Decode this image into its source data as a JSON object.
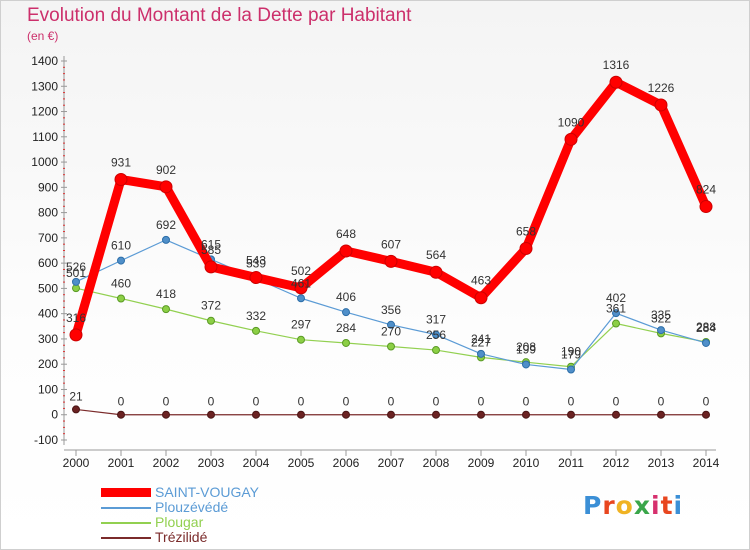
{
  "header": {
    "title": "Evolution du Montant de la Dette par Habitant",
    "subtitle": "(en €)"
  },
  "logo": {
    "text": "Proxiti",
    "colors": [
      "#3b8fd6",
      "#e8461f",
      "#f0b323",
      "#3aa64a",
      "#d6306e",
      "#e8461f",
      "#3b8fd6"
    ]
  },
  "legend": {
    "items": [
      {
        "label": "SAINT-VOUGAY",
        "color": "#ff0000"
      },
      {
        "label": "Plouzévédé",
        "color": "#5b9bd5"
      },
      {
        "label": "Plougar",
        "color": "#92d050"
      },
      {
        "label": "Trézilidé",
        "color": "#7b2b2b"
      }
    ]
  },
  "chart_data": {
    "type": "line",
    "x": [
      "2000",
      "2001",
      "2002",
      "2003",
      "2004",
      "2005",
      "2006",
      "2007",
      "2008",
      "2009",
      "2010",
      "2011",
      "2012",
      "2013",
      "2014"
    ],
    "ylim": [
      -100,
      1400
    ],
    "yticks": [
      -100,
      0,
      100,
      200,
      300,
      400,
      500,
      600,
      700,
      800,
      900,
      1000,
      1100,
      1200,
      1300,
      1400
    ],
    "grid": false,
    "legend_position": "bottom-left",
    "series": [
      {
        "name": "SAINT-VOUGAY",
        "color": "#ff0000",
        "values": [
          316,
          931,
          902,
          585,
          543,
          502,
          648,
          607,
          564,
          463,
          658,
          1090,
          1316,
          1226,
          824
        ]
      },
      {
        "name": "Plouzévédé",
        "color": "#5b9bd5",
        "values": [
          526,
          610,
          692,
          615,
          539,
          461,
          406,
          356,
          317,
          241,
          199,
          179,
          402,
          335,
          284
        ]
      },
      {
        "name": "Plougar",
        "color": "#92d050",
        "values": [
          501,
          460,
          418,
          372,
          332,
          297,
          284,
          270,
          256,
          227,
          208,
          190,
          361,
          322,
          288
        ]
      },
      {
        "name": "Trézilidé",
        "color": "#7b2b2b",
        "values": [
          21,
          0,
          0,
          0,
          0,
          0,
          0,
          0,
          0,
          0,
          0,
          0,
          0,
          0,
          0
        ]
      }
    ]
  }
}
